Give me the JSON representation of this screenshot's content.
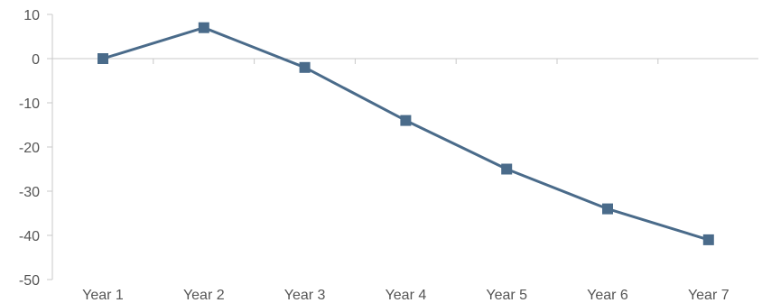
{
  "chart_data": {
    "type": "line",
    "title": "",
    "xlabel": "",
    "ylabel": "",
    "categories": [
      "Year 1",
      "Year 2",
      "Year 3",
      "Year 4",
      "Year 5",
      "Year 6",
      "Year 7"
    ],
    "series": [
      {
        "values": [
          0,
          7,
          -2,
          -14,
          -25,
          -34,
          -41
        ],
        "color": "#4a6b8a",
        "marker": "square"
      }
    ],
    "ylim": [
      -50,
      10
    ],
    "yticks": [
      10,
      0,
      -10,
      -20,
      -30,
      -40,
      -50
    ],
    "grid": false,
    "legend": "none",
    "axis_color": "#c8c8c8",
    "label_color": "#555555"
  }
}
